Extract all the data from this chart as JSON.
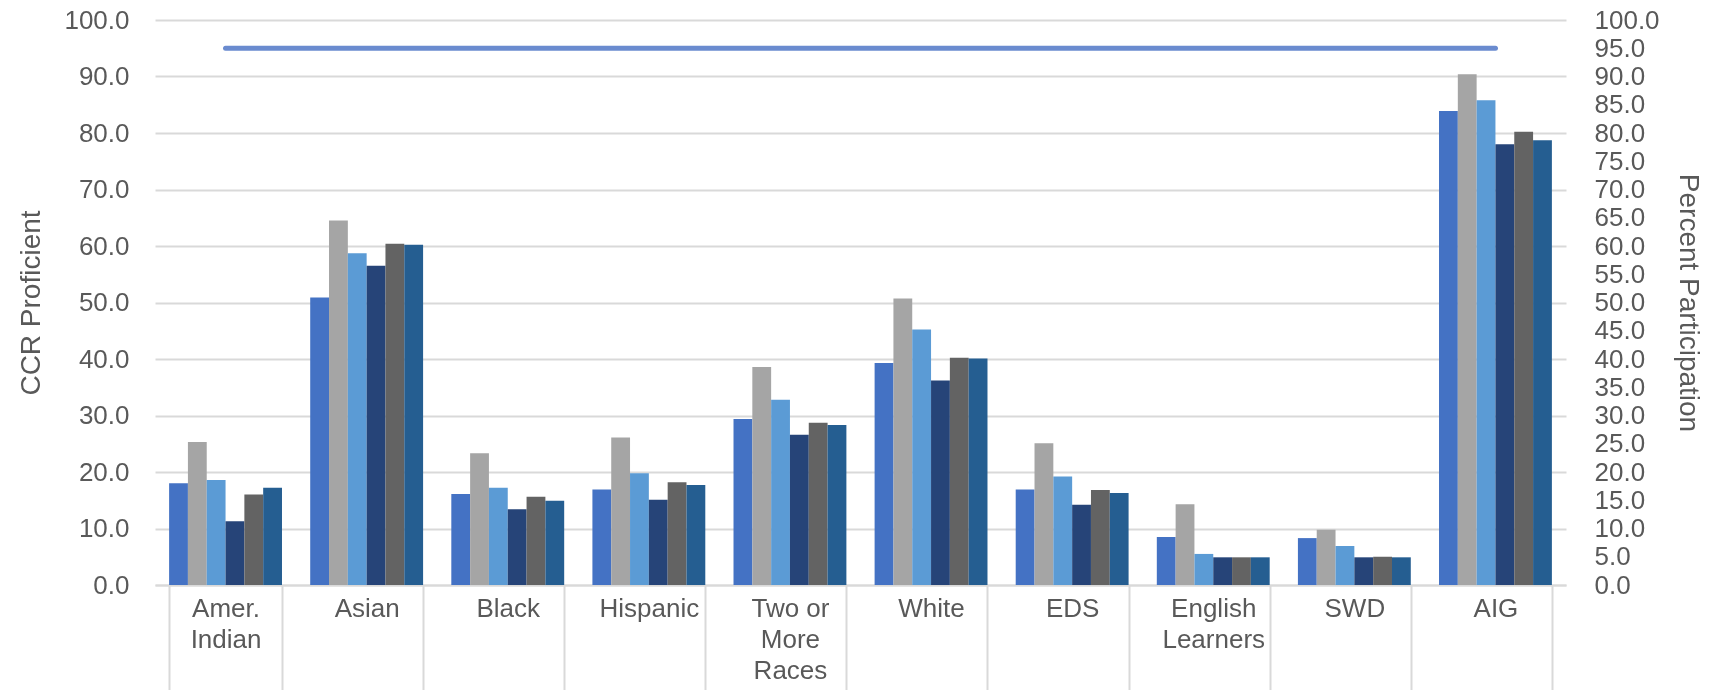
{
  "chart_data": {
    "type": "bar",
    "ylabel": "CCR Proficient",
    "y2label": "Percent Participation",
    "categories": [
      "Amer. Indian",
      "Asian",
      "Black",
      "Hispanic",
      "Two or More Races",
      "White",
      "EDS",
      "English Learners",
      "SWD",
      "AIG"
    ],
    "series": [
      {
        "color": "#4472c4",
        "values": [
          18.0,
          50.9,
          16.1,
          16.9,
          29.4,
          39.3,
          16.9,
          8.5,
          8.3,
          83.9
        ]
      },
      {
        "color": "#a5a5a5",
        "values": [
          25.3,
          64.5,
          23.3,
          26.1,
          38.6,
          50.7,
          25.1,
          14.3,
          9.8,
          90.4
        ]
      },
      {
        "color": "#5b9bd5",
        "values": [
          18.6,
          58.7,
          17.2,
          19.8,
          32.8,
          45.2,
          19.2,
          5.5,
          6.9,
          85.8
        ]
      },
      {
        "color": "#264478",
        "values": [
          11.3,
          56.5,
          13.4,
          15.1,
          26.6,
          36.2,
          14.2,
          4.9,
          4.9,
          78.0
        ]
      },
      {
        "color": "#636363",
        "values": [
          16.0,
          60.4,
          15.6,
          18.2,
          28.7,
          40.2,
          16.8,
          4.9,
          5.0,
          80.2
        ]
      },
      {
        "color": "#255e91",
        "values": [
          17.2,
          60.2,
          14.9,
          17.7,
          28.3,
          40.1,
          16.3,
          4.9,
          4.9,
          78.7
        ]
      },
      {
        "type": "line",
        "axis": "y2",
        "color": "#6a8bcf",
        "values": [
          95,
          95,
          95,
          95,
          95,
          95,
          95,
          95,
          95,
          95
        ]
      }
    ],
    "ylim": [
      0,
      100
    ],
    "yticks": [
      {
        "value": 0,
        "label": "0.0"
      },
      {
        "value": 10,
        "label": "10.0"
      },
      {
        "value": 20,
        "label": "20.0"
      },
      {
        "value": 30,
        "label": "30.0"
      },
      {
        "value": 40,
        "label": "40.0"
      },
      {
        "value": 50,
        "label": "50.0"
      },
      {
        "value": 60,
        "label": "60.0"
      },
      {
        "value": 70,
        "label": "70.0"
      },
      {
        "value": 80,
        "label": "80.0"
      },
      {
        "value": 90,
        "label": "90.0"
      },
      {
        "value": 100,
        "label": "100.0"
      }
    ],
    "y2lim": [
      0,
      100
    ],
    "y2ticks": [
      {
        "value": 0,
        "label": "0.0"
      },
      {
        "value": 5,
        "label": "5.0"
      },
      {
        "value": 10,
        "label": "10.0"
      },
      {
        "value": 15,
        "label": "15.0"
      },
      {
        "value": 20,
        "label": "20.0"
      },
      {
        "value": 25,
        "label": "25.0"
      },
      {
        "value": 30,
        "label": "30.0"
      },
      {
        "value": 35,
        "label": "35.0"
      },
      {
        "value": 40,
        "label": "40.0"
      },
      {
        "value": 45,
        "label": "45.0"
      },
      {
        "value": 50,
        "label": "50.0"
      },
      {
        "value": 55,
        "label": "55.0"
      },
      {
        "value": 60,
        "label": "60.0"
      },
      {
        "value": 65,
        "label": "65.0"
      },
      {
        "value": 70,
        "label": "70.0"
      },
      {
        "value": 75,
        "label": "75.0"
      },
      {
        "value": 80,
        "label": "80.0"
      },
      {
        "value": 85,
        "label": "85.0"
      },
      {
        "value": 90,
        "label": "90.0"
      },
      {
        "value": 95,
        "label": "95.0"
      },
      {
        "value": 100,
        "label": "100.0"
      }
    ],
    "grid": "y",
    "marker": "none",
    "legend": false
  }
}
